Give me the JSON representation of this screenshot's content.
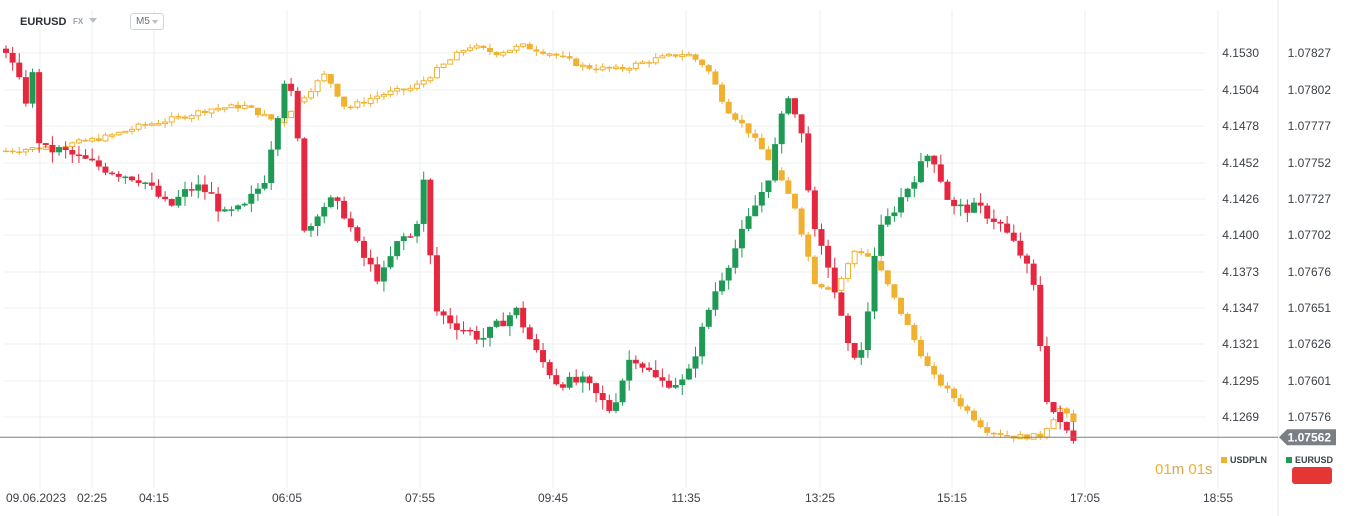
{
  "header": {
    "symbol": "EURUSD",
    "market": "FX",
    "timeframe": "M5"
  },
  "legend": {
    "series_1": "USDPLN",
    "series_2": "EURUSD"
  },
  "countdown": {
    "minutes": "01",
    "minutes_unit": "m",
    "seconds": "01",
    "seconds_unit": "s"
  },
  "colors": {
    "up": "#1e9a55",
    "down": "#e5283f",
    "overlay": "#f0b130",
    "grid": "#eef0f2",
    "price_line": "#7a7f85",
    "tag_bg": "#7a7f85",
    "action_button": "#e53535"
  },
  "chart_data": {
    "type": "candlestick",
    "x_tick_labels": [
      "09.06.2023",
      "02:25",
      "04:15",
      "06:05",
      "07:55",
      "09:45",
      "11:35",
      "13:25",
      "15:15",
      "17:05",
      "18:55"
    ],
    "y_left_tick_labels": [
      "4.1530",
      "4.1504",
      "4.1478",
      "4.1452",
      "4.1426",
      "4.1400",
      "4.1373",
      "4.1347",
      "4.1321",
      "4.1295",
      "4.1269"
    ],
    "y_right_tick_labels": [
      "1.07827",
      "1.07802",
      "1.07777",
      "1.07752",
      "1.07727",
      "1.07702",
      "1.07676",
      "1.07651",
      "1.07626",
      "1.07601",
      "1.07576"
    ],
    "last_price": "1.07562",
    "grid": true,
    "series": [
      {
        "name": "EURUSD",
        "type": "candlestick",
        "axis": "right",
        "up_color": "#1e9a55",
        "down_color": "#e5283f",
        "points": [
          [
            0.0,
            1.0783
          ],
          [
            0.25,
            1.078
          ],
          [
            0.33,
            1.0779
          ],
          [
            0.4,
            1.07815
          ],
          [
            0.5,
            1.0776
          ],
          [
            0.8,
            1.0776
          ],
          [
            1.3,
            1.0775
          ],
          [
            1.6,
            1.07745
          ],
          [
            2.0,
            1.0774
          ],
          [
            2.4,
            1.0772
          ],
          [
            2.6,
            1.0773
          ],
          [
            2.8,
            1.07735
          ],
          [
            3.0,
            1.0773
          ],
          [
            3.2,
            1.07715
          ],
          [
            3.5,
            1.0772
          ],
          [
            3.8,
            1.0774
          ],
          [
            4.1,
            1.0781
          ],
          [
            4.25,
            1.0779
          ],
          [
            4.4,
            1.077
          ],
          [
            4.6,
            1.0772
          ],
          [
            4.8,
            1.07725
          ],
          [
            5.0,
            1.07715
          ],
          [
            5.2,
            1.0769
          ],
          [
            5.5,
            1.0767
          ],
          [
            5.8,
            1.077
          ],
          [
            6.0,
            1.077
          ],
          [
            6.15,
            1.0774
          ],
          [
            6.3,
            1.0765
          ],
          [
            6.6,
            1.0764
          ],
          [
            7.0,
            1.0763
          ],
          [
            7.5,
            1.0765
          ],
          [
            7.8,
            1.0762
          ],
          [
            8.1,
            1.076
          ],
          [
            8.5,
            1.076
          ],
          [
            8.9,
            1.0758
          ],
          [
            9.2,
            1.0762
          ],
          [
            9.6,
            1.076
          ],
          [
            10.0,
            1.076
          ],
          [
            10.4,
            1.0766
          ],
          [
            10.8,
            1.077
          ],
          [
            11.2,
            1.0774
          ],
          [
            11.5,
            1.078
          ],
          [
            11.7,
            1.0777
          ],
          [
            11.9,
            1.077
          ],
          [
            12.1,
            1.0768
          ],
          [
            12.4,
            1.0762
          ],
          [
            12.6,
            1.0762
          ],
          [
            12.8,
            1.077
          ],
          [
            13.2,
            1.0773
          ],
          [
            13.6,
            1.0776
          ],
          [
            13.9,
            1.0772
          ],
          [
            14.3,
            1.0772
          ],
          [
            14.6,
            1.0771
          ],
          [
            14.9,
            1.0769
          ],
          [
            15.1,
            1.0767
          ],
          [
            15.3,
            1.0759
          ],
          [
            15.5,
            1.0757
          ],
          [
            15.75,
            1.0756
          ]
        ]
      },
      {
        "name": "USDPLN",
        "type": "candlestick",
        "axis": "left",
        "up_color": "#f0b130",
        "down_color": "#f0b130",
        "points": [
          [
            0.0,
            4.146
          ],
          [
            0.5,
            4.1462
          ],
          [
            1.0,
            4.1465
          ],
          [
            1.5,
            4.147
          ],
          [
            2.0,
            4.1478
          ],
          [
            2.5,
            4.1483
          ],
          [
            3.0,
            4.149
          ],
          [
            3.5,
            4.1492
          ],
          [
            4.0,
            4.148
          ],
          [
            4.4,
            4.15
          ],
          [
            4.7,
            4.1515
          ],
          [
            5.0,
            4.149
          ],
          [
            5.5,
            4.15
          ],
          [
            6.0,
            4.1505
          ],
          [
            6.4,
            4.152
          ],
          [
            6.8,
            4.1535
          ],
          [
            7.2,
            4.153
          ],
          [
            7.6,
            4.1535
          ],
          [
            8.0,
            4.153
          ],
          [
            8.5,
            4.152
          ],
          [
            9.0,
            4.1518
          ],
          [
            9.5,
            4.1525
          ],
          [
            10.0,
            4.153
          ],
          [
            10.3,
            4.152
          ],
          [
            10.6,
            4.149
          ],
          [
            10.9,
            4.1475
          ],
          [
            11.2,
            4.1455
          ],
          [
            11.6,
            4.142
          ],
          [
            11.9,
            4.1365
          ],
          [
            12.2,
            4.136
          ],
          [
            12.5,
            4.139
          ],
          [
            12.8,
            4.138
          ],
          [
            13.2,
            4.134
          ],
          [
            13.6,
            4.13
          ],
          [
            14.0,
            4.128
          ],
          [
            14.4,
            4.126
          ],
          [
            14.8,
            4.1255
          ],
          [
            15.2,
            4.1255
          ],
          [
            15.5,
            4.1275
          ],
          [
            15.75,
            4.1262
          ]
        ]
      }
    ]
  }
}
